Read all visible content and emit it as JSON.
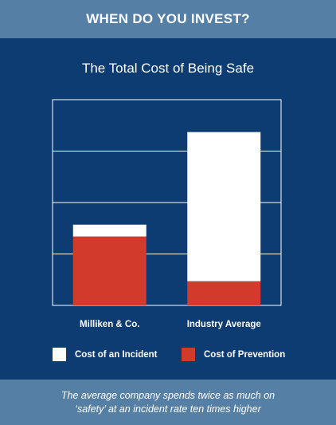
{
  "header": {
    "title": "WHEN DO YOU INVEST?"
  },
  "footer": {
    "line1": "The average company spends twice as much on",
    "line2": "‘safety’ at an incident rate ten times higher"
  },
  "colors": {
    "background": "#0d3c73",
    "banner": "#567fa6",
    "incident": "#ffffff",
    "prevention": "#d23a2b"
  },
  "chart_data": {
    "type": "bar",
    "stacked": true,
    "title": "The Total Cost of Being Safe",
    "xlabel": "",
    "ylabel": "",
    "categories": [
      "Milliken & Co.",
      "Industry Average"
    ],
    "ylim": [
      0,
      4
    ],
    "grid": true,
    "legend_position": "bottom",
    "series": [
      {
        "name": "Cost of Prevention",
        "color": "#d23a2b",
        "values": [
          1.34,
          0.47
        ]
      },
      {
        "name": "Cost of an Incident",
        "color": "#ffffff",
        "values": [
          0.23,
          2.9
        ]
      }
    ],
    "legend": [
      {
        "name": "Cost of an Incident",
        "color": "#ffffff"
      },
      {
        "name": "Cost of Prevention",
        "color": "#d23a2b"
      }
    ]
  }
}
